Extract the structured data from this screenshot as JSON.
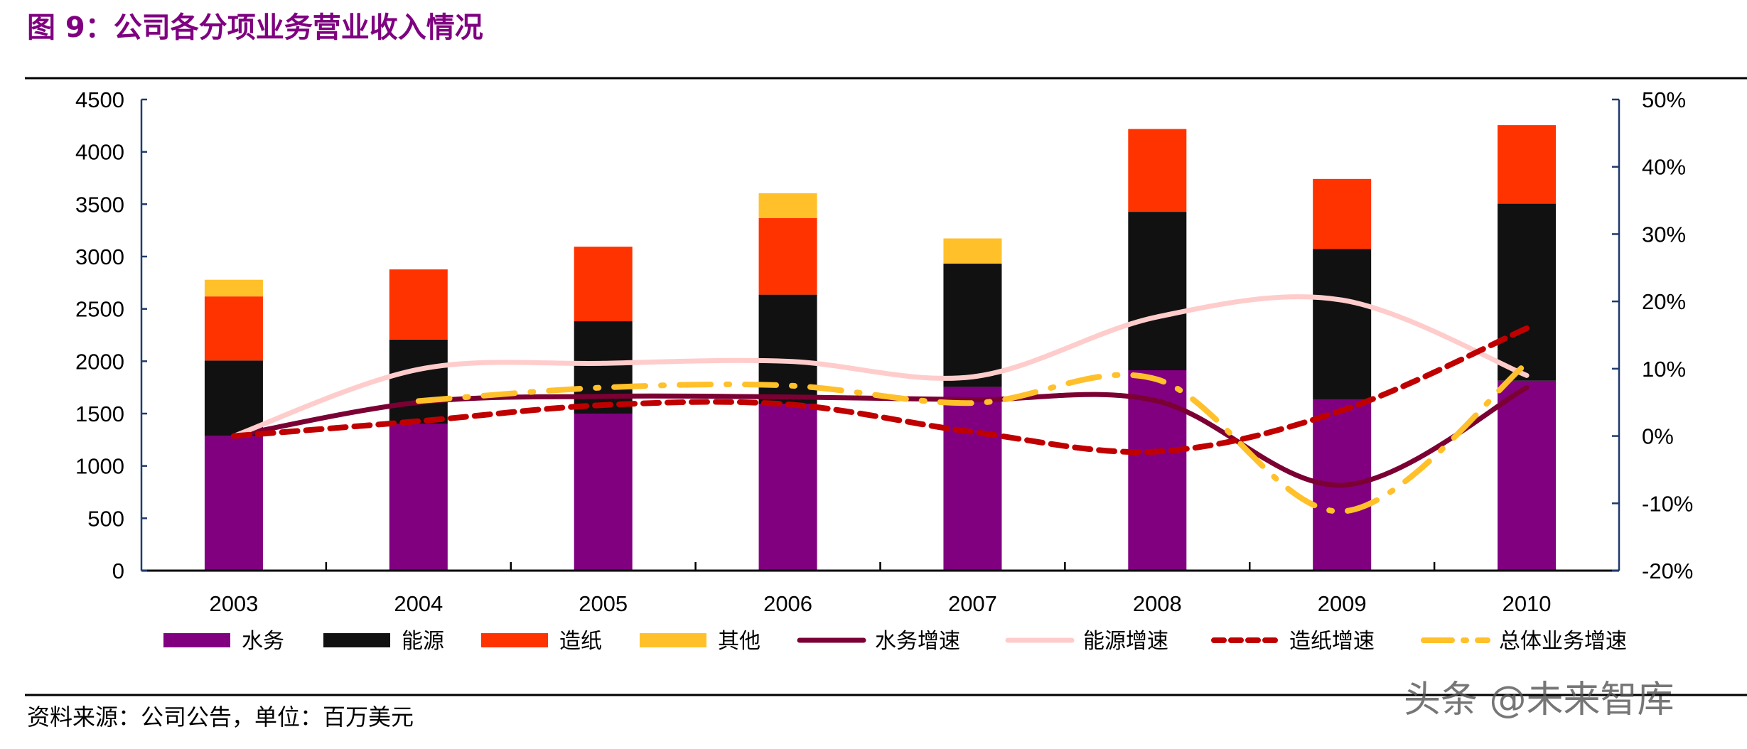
{
  "header": {
    "title": "图 9：公司各分项业务营业收入情况"
  },
  "footer": {
    "source": "资料来源：公司公告，单位：百万美元",
    "watermark": "头条 @未来智库"
  },
  "colors": {
    "title": "#7f0080",
    "water": "#800080",
    "energy": "#111111",
    "paper": "#ff3300",
    "other": "#ffc02a",
    "water_growth": "#7b0033",
    "energy_growth": "#ffcccc",
    "paper_growth": "#c00000",
    "total_growth": "#ffc02a"
  },
  "chart_data": {
    "type": "bar+line",
    "categories": [
      "2003",
      "2004",
      "2005",
      "2006",
      "2007",
      "2008",
      "2009",
      "2010"
    ],
    "left_axis": {
      "ylim": [
        0,
        4500
      ],
      "ticks": [
        "0",
        "500",
        "1000",
        "1500",
        "2000",
        "2500",
        "3000",
        "3500",
        "4000",
        "4500"
      ]
    },
    "right_axis": {
      "ylim": [
        -20,
        50
      ],
      "ticks": [
        "-20%",
        "-10%",
        "0%",
        "10%",
        "20%",
        "30%",
        "40%",
        "50%"
      ]
    },
    "stacked_bars": [
      {
        "name": "水务",
        "values": [
          1287,
          1402,
          1500,
          1595,
          1755,
          1914,
          1636,
          1814
        ]
      },
      {
        "name": "能源",
        "values": [
          720,
          805,
          882,
          1041,
          1177,
          1513,
          1437,
          1691
        ]
      },
      {
        "name": "造纸",
        "values": [
          612,
          670,
          712,
          732,
          0,
          791,
          668,
          750
        ]
      },
      {
        "name": "其他",
        "values": [
          159,
          0,
          0,
          237,
          241,
          0,
          0,
          0
        ]
      }
    ],
    "lines": [
      {
        "name": "水务增速",
        "axis": "right",
        "style": "solid",
        "values": [
          0,
          5.0,
          5.9,
          5.8,
          5.4,
          5.2,
          -7.3,
          7.2
        ]
      },
      {
        "name": "能源增速",
        "axis": "right",
        "style": "solid",
        "values": [
          0,
          9.9,
          10.8,
          11.1,
          8.8,
          17.7,
          20.2,
          9.0
        ]
      },
      {
        "name": "造纸增速",
        "axis": "right",
        "style": "dashed",
        "values": [
          0,
          2.2,
          4.6,
          4.7,
          0.6,
          -2.3,
          3.8,
          16.0
        ]
      },
      {
        "name": "总体业务增速",
        "axis": "right",
        "style": "dash-dot",
        "values": [
          null,
          5.2,
          7.2,
          7.5,
          4.9,
          8.4,
          -11.2,
          10.8
        ]
      }
    ],
    "legend": "bottom"
  }
}
